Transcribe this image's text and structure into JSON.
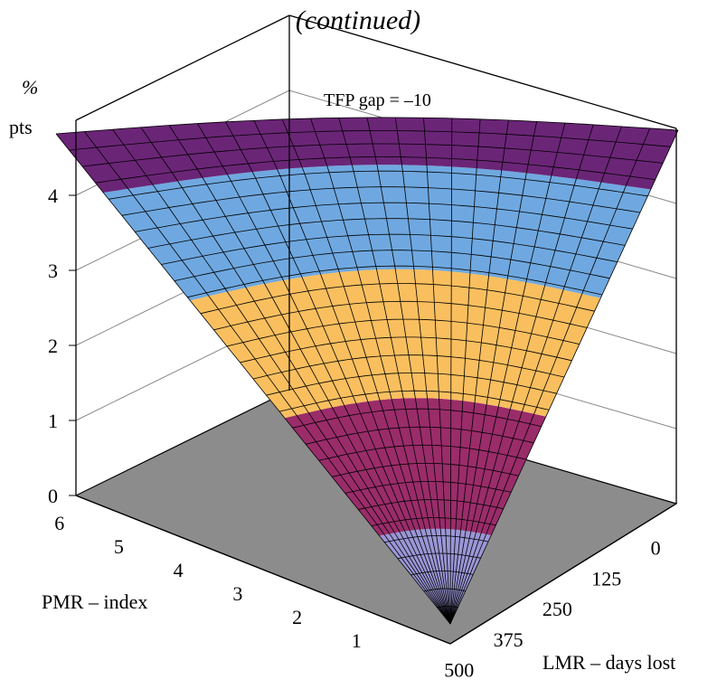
{
  "chart_data": {
    "type": "surface",
    "title": "(continued)",
    "annotation": "TFP gap = –10",
    "zlabel_line1": "%",
    "zlabel_line2": "pts",
    "xlabel": "PMR – index",
    "ylabel": "LMR – days lost",
    "z_ticks": [
      "0",
      "1",
      "2",
      "3",
      "4"
    ],
    "pmr_ticks": [
      "6",
      "5",
      "4",
      "3",
      "2",
      "1"
    ],
    "lmr_ticks": [
      "0",
      "125",
      "250",
      "375",
      "500"
    ],
    "zlim": [
      0,
      5
    ],
    "colors": {
      "floor": "#8c8c8c",
      "band_0_1": "#9b96d6",
      "band_1_2": "#9a2c6a",
      "band_2_3": "#f9bf5f",
      "band_3_4": "#6fa8e0",
      "band_4_5": "#6b2577",
      "mesh": "#000000",
      "wall_lines": "#888888"
    },
    "bands": [
      {
        "range": "0-1",
        "color": "#9b96d6"
      },
      {
        "range": "1-2",
        "color": "#9a2c6a"
      },
      {
        "range": "2-3",
        "color": "#f9bf5f"
      },
      {
        "range": "3-4",
        "color": "#6fa8e0"
      },
      {
        "range": "4-5",
        "color": "#6b2577"
      }
    ]
  }
}
